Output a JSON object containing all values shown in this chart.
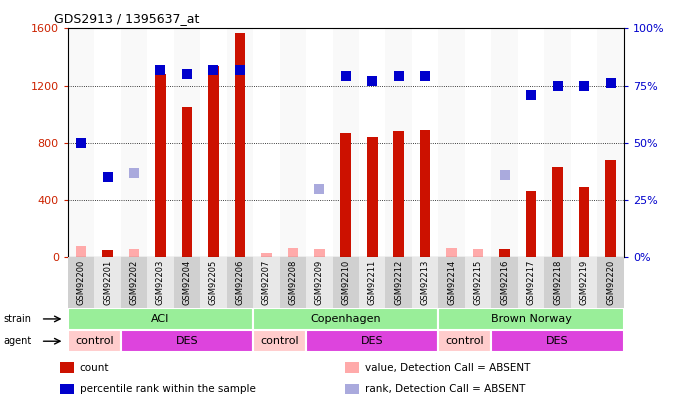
{
  "title": "GDS2913 / 1395637_at",
  "samples": [
    "GSM92200",
    "GSM92201",
    "GSM92202",
    "GSM92203",
    "GSM92204",
    "GSM92205",
    "GSM92206",
    "GSM92207",
    "GSM92208",
    "GSM92209",
    "GSM92210",
    "GSM92211",
    "GSM92212",
    "GSM92213",
    "GSM92214",
    "GSM92215",
    "GSM92216",
    "GSM92217",
    "GSM92218",
    "GSM92219",
    "GSM92220"
  ],
  "count_values": [
    80,
    50,
    55,
    1280,
    1050,
    1340,
    1570,
    30,
    65,
    60,
    870,
    840,
    880,
    890,
    65,
    60,
    55,
    460,
    630,
    490,
    680
  ],
  "count_absent": [
    true,
    false,
    true,
    false,
    false,
    false,
    false,
    true,
    true,
    true,
    false,
    false,
    false,
    false,
    true,
    true,
    false,
    false,
    false,
    false,
    false
  ],
  "percentile_values": [
    50,
    35,
    37,
    82,
    80,
    82,
    82,
    null,
    null,
    30,
    79,
    77,
    79,
    79,
    null,
    null,
    36,
    71,
    75,
    75,
    76
  ],
  "percentile_absent": [
    false,
    false,
    true,
    false,
    false,
    false,
    false,
    null,
    null,
    true,
    false,
    false,
    false,
    false,
    null,
    null,
    true,
    false,
    false,
    false,
    false
  ],
  "ylim_left": [
    0,
    1600
  ],
  "ylim_right": [
    0,
    100
  ],
  "yticks_left": [
    0,
    400,
    800,
    1200,
    1600
  ],
  "yticks_right": [
    0,
    25,
    50,
    75,
    100
  ],
  "strain_groups": [
    {
      "label": "ACI",
      "start": 0,
      "end": 6
    },
    {
      "label": "Copenhagen",
      "start": 7,
      "end": 13
    },
    {
      "label": "Brown Norway",
      "start": 14,
      "end": 20
    }
  ],
  "agent_groups": [
    {
      "label": "control",
      "start": 0,
      "end": 1
    },
    {
      "label": "DES",
      "start": 2,
      "end": 6
    },
    {
      "label": "control",
      "start": 7,
      "end": 8
    },
    {
      "label": "DES",
      "start": 9,
      "end": 13
    },
    {
      "label": "control",
      "start": 14,
      "end": 15
    },
    {
      "label": "DES",
      "start": 16,
      "end": 20
    }
  ],
  "bar_color_present": "#cc1100",
  "bar_color_absent": "#ffaaaa",
  "dot_color_present": "#0000cc",
  "dot_color_absent": "#aaaadd",
  "strain_bg": "#99ee99",
  "agent_control_bg": "#ffcccc",
  "agent_des_bg": "#dd44dd",
  "axis_label_color_left": "#cc2200",
  "axis_label_color_right": "#0000cc",
  "bar_width": 0.4,
  "dot_size": 45
}
